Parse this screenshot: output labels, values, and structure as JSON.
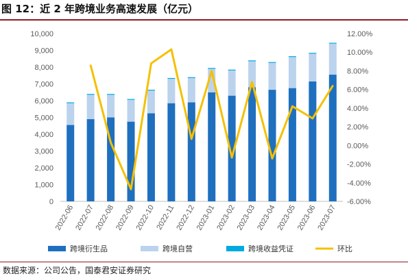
{
  "figure_title": "图 12：近 2 年跨境业务高速发展（亿元）",
  "source_note": "数据来源：公司公告，国泰君安证券研究",
  "chart_data": {
    "type": "bar",
    "stacked": true,
    "categories": [
      "2022-06",
      "2022-07",
      "2022-08",
      "2022-09",
      "2022-10",
      "2022-11",
      "2022-12",
      "2023-01",
      "2023-02",
      "2023-03",
      "2023-04",
      "2023-05",
      "2023-06",
      "2023-07"
    ],
    "series": [
      {
        "name": "跨境衍生品",
        "axis": "left",
        "color": "#1f6fbf",
        "values": [
          4550,
          4900,
          5000,
          4750,
          5250,
          5850,
          5900,
          6500,
          6300,
          6800,
          6650,
          6750,
          7150,
          7550
        ]
      },
      {
        "name": "跨境自营",
        "axis": "left",
        "color": "#bcd3ee",
        "values": [
          1300,
          1450,
          1350,
          1300,
          1350,
          1450,
          1450,
          1400,
          1500,
          1550,
          1600,
          1850,
          1650,
          1850
        ]
      },
      {
        "name": "跨境收益凭证",
        "axis": "left",
        "color": "#00a9e0",
        "values": [
          50,
          50,
          50,
          50,
          50,
          50,
          50,
          50,
          50,
          50,
          50,
          50,
          50,
          50
        ]
      },
      {
        "name": "环比",
        "type": "line",
        "axis": "right",
        "color": "#f5c000",
        "values": [
          null,
          8.6,
          0.3,
          -4.7,
          8.8,
          10.3,
          0.7,
          8.0,
          -1.3,
          6.8,
          -1.4,
          4.2,
          2.9,
          6.4
        ]
      }
    ],
    "y_left": {
      "min": 0,
      "max": 10000,
      "step": 1000,
      "ticks": [
        "0",
        "1,000",
        "2,000",
        "3,000",
        "4,000",
        "5,000",
        "6,000",
        "7,000",
        "8,000",
        "9,000",
        "10,000"
      ]
    },
    "y_right": {
      "min": -6,
      "max": 12,
      "step": 2,
      "ticks": [
        "-6.00%",
        "-4.00%",
        "-2.00%",
        "0.00%",
        "2.00%",
        "4.00%",
        "6.00%",
        "8.00%",
        "10.00%",
        "12.00%"
      ]
    },
    "grid": false,
    "legend_position": "bottom"
  }
}
